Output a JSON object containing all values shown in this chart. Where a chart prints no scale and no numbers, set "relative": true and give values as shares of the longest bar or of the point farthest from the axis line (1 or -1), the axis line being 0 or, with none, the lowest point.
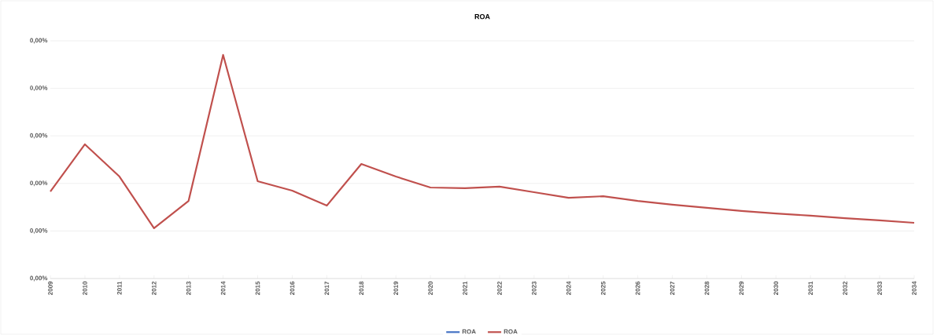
{
  "chart_data": {
    "type": "line",
    "title": "ROA",
    "relative": true,
    "categories": [
      "2009",
      "2010",
      "2011",
      "2012",
      "2013",
      "2014",
      "2015",
      "2016",
      "2017",
      "2018",
      "2019",
      "2020",
      "2021",
      "2022",
      "2023",
      "2024",
      "2025",
      "2026",
      "2027",
      "2028",
      "2029",
      "2030",
      "2031",
      "2032",
      "2033",
      "2034"
    ],
    "series": [
      {
        "name": "ROA",
        "color": "#4472c4",
        "values": [
          null,
          null,
          null,
          null,
          null,
          null,
          null,
          null,
          null,
          null,
          null,
          null,
          null,
          null,
          null,
          null,
          null,
          null,
          null,
          null,
          null,
          null,
          null,
          null,
          null,
          null
        ]
      },
      {
        "name": "ROA",
        "color": "#c0504d",
        "values": [
          0.389,
          0.6,
          0.456,
          0.225,
          0.347,
          1,
          0.435,
          0.393,
          0.326,
          0.512,
          0.456,
          0.407,
          0.404,
          0.411,
          0.386,
          0.361,
          0.368,
          0.347,
          0.33,
          0.316,
          0.302,
          0.291,
          0.281,
          0.27,
          0.26,
          0.249
        ]
      }
    ],
    "annotations": [
      "0,00%",
      "0,00%",
      "0,00%",
      "0,00%",
      "0,00%",
      "0,00%"
    ],
    "grid": "y",
    "legend": "bottom",
    "marker": "none",
    "line_style": "solid"
  }
}
